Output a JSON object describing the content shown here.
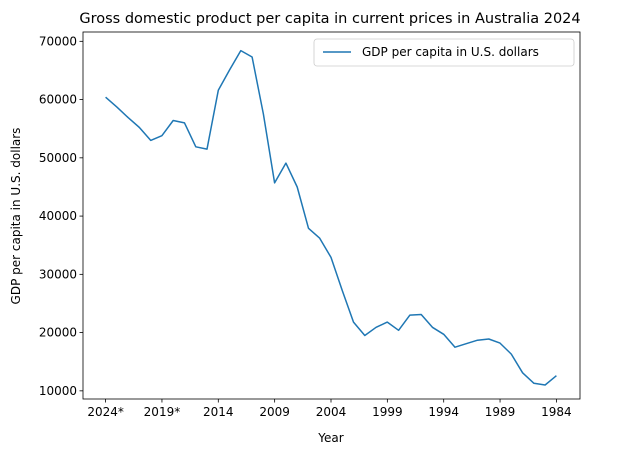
{
  "chart_data": {
    "type": "line",
    "title": "Gross domestic product per capita in current prices in Australia 2024",
    "xlabel": "Year",
    "ylabel": "GDP per capita in U.S. dollars",
    "x": [
      "2024*",
      "2023*",
      "2022*",
      "2021*",
      "2020*",
      "2019*",
      "2018*",
      "2017*",
      "2016*",
      "2015",
      "2014",
      "2013",
      "2012",
      "2011",
      "2010",
      "2009",
      "2008",
      "2007",
      "2006",
      "2005",
      "2004",
      "2003",
      "2002",
      "2001",
      "2000",
      "1999",
      "1998",
      "1997",
      "1996",
      "1995",
      "1994",
      "1993",
      "1992",
      "1991",
      "1990",
      "1989",
      "1988",
      "1987",
      "1986",
      "1985",
      "1984"
    ],
    "xticks": [
      "2024*",
      "2019*",
      "2014",
      "2009",
      "2004",
      "1999",
      "1994",
      "1989",
      "1984"
    ],
    "yticks": [
      10000,
      20000,
      30000,
      40000,
      50000,
      60000,
      70000
    ],
    "ylim": [
      8600,
      71600
    ],
    "series": [
      {
        "name": "GDP per capita in U.S. dollars",
        "color": "#1f77b4",
        "values": [
          60400,
          58700,
          56900,
          55200,
          53000,
          53800,
          56400,
          56000,
          51900,
          51500,
          61600,
          65100,
          68400,
          67300,
          57500,
          45700,
          49100,
          45000,
          37900,
          36200,
          32900,
          27200,
          21800,
          19500,
          20900,
          21800,
          20400,
          23000,
          23100,
          20900,
          19700,
          17500,
          18100,
          18700,
          18900,
          18200,
          16300,
          13100,
          11300,
          11000,
          12600
        ]
      }
    ],
    "legend": "top-right",
    "grid": false
  }
}
